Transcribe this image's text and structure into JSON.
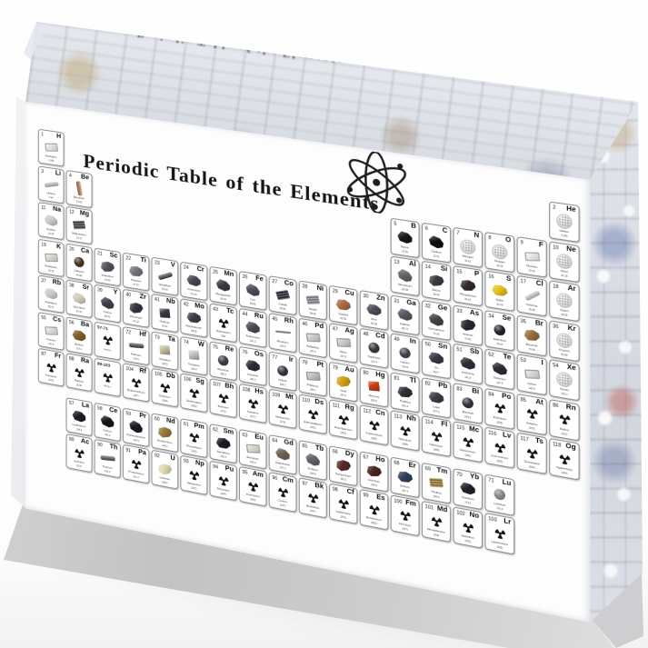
{
  "product": {
    "title": "Periodic Table of the Elements"
  },
  "icons": {
    "logo": "atom-icon",
    "unstable_sample": "radioactive-trefoil-icon"
  },
  "block_colors": {
    "front_face": "#fdfdfe",
    "base_edge_gray": "#c9c9ca",
    "side_refraction_blue": "#9aa8c8",
    "side_refraction_red": "#b94b3c",
    "side_refraction_tan": "#c8a070"
  },
  "placeholders": [
    {
      "label": "57-71",
      "sub": "La-Lu",
      "g": 3,
      "p": 6
    },
    {
      "label": "89-103",
      "sub": "Ac-Lr",
      "g": 3,
      "p": 7
    }
  ],
  "elements": [
    {
      "n": 1,
      "s": "H",
      "nm": "Hydrogen",
      "m": "1.008",
      "g": 1,
      "p": 1,
      "t": "s",
      "c": "#e8e8e6"
    },
    {
      "n": 2,
      "s": "He",
      "nm": "Helium",
      "m": "4.003",
      "g": 18,
      "p": 1,
      "t": "g"
    },
    {
      "n": 3,
      "s": "Li",
      "nm": "Lithium",
      "m": "6.94",
      "g": 1,
      "p": 2,
      "t": "r",
      "c": "#c0c0c4",
      "o": -15
    },
    {
      "n": 4,
      "s": "Be",
      "nm": "Beryllium",
      "m": "9.012",
      "g": 2,
      "p": 2,
      "t": "r",
      "c": "#b5713d",
      "o": 80
    },
    {
      "n": 5,
      "s": "B",
      "nm": "Boron",
      "m": "10.81",
      "g": 13,
      "p": 2,
      "t": "k",
      "c": "#17171b"
    },
    {
      "n": 6,
      "s": "C",
      "nm": "Carbon",
      "m": "12.01",
      "g": 14,
      "p": 2,
      "t": "k",
      "c": "#0f0f13"
    },
    {
      "n": 7,
      "s": "N",
      "nm": "Nitrogen",
      "m": "14.01",
      "g": 15,
      "p": 2,
      "t": "g"
    },
    {
      "n": 8,
      "s": "O",
      "nm": "Oxygen",
      "m": "16.00",
      "g": 16,
      "p": 2,
      "t": "g"
    },
    {
      "n": 9,
      "s": "F",
      "nm": "Fluorine",
      "m": "19.00",
      "g": 17,
      "p": 2,
      "t": "s",
      "c": "#eeeeec"
    },
    {
      "n": 10,
      "s": "Ne",
      "nm": "Neon",
      "m": "20.18",
      "g": 18,
      "p": 2,
      "t": "g"
    },
    {
      "n": 11,
      "s": "Na",
      "nm": "Sodium",
      "m": "22.99",
      "g": 1,
      "p": 3,
      "t": "k",
      "c": "#cbcbc7"
    },
    {
      "n": 12,
      "s": "Mg",
      "nm": "Magnesium",
      "m": "24.31",
      "g": 2,
      "p": 3,
      "t": "b",
      "c": "#4b4b51",
      "o": -10
    },
    {
      "n": 13,
      "s": "Al",
      "nm": "Aluminium",
      "m": "26.98",
      "g": 13,
      "p": 3,
      "t": "k",
      "c": "#63636b"
    },
    {
      "n": 14,
      "s": "Si",
      "nm": "Silicon",
      "m": "28.09",
      "g": 14,
      "p": 3,
      "t": "k",
      "c": "#3b3b43"
    },
    {
      "n": 15,
      "s": "P",
      "nm": "Phosphorus",
      "m": "30.97",
      "g": 15,
      "p": 3,
      "t": "k",
      "c": "#352a2c"
    },
    {
      "n": 16,
      "s": "S",
      "nm": "Sulfur",
      "m": "32.06",
      "g": 16,
      "p": 3,
      "t": "k",
      "c": "#e3c21d"
    },
    {
      "n": 17,
      "s": "Cl",
      "nm": "Chlorine",
      "m": "35.45",
      "g": 17,
      "p": 3,
      "t": "r",
      "c": "#caccc2",
      "o": -35
    },
    {
      "n": 18,
      "s": "Ar",
      "nm": "Argon",
      "m": "39.95",
      "g": 18,
      "p": 3,
      "t": "g"
    },
    {
      "n": 19,
      "s": "K",
      "nm": "Potassium",
      "m": "39.10",
      "g": 1,
      "p": 4,
      "t": "s",
      "c": "#d8d8d0"
    },
    {
      "n": 20,
      "s": "Ca",
      "nm": "Calcium",
      "m": "40.08",
      "g": 2,
      "p": 4,
      "t": "o",
      "c": "#483320"
    },
    {
      "n": 21,
      "s": "Sc",
      "nm": "Scandium",
      "m": "44.96",
      "g": 3,
      "p": 4,
      "t": "k",
      "c": "#53535b"
    },
    {
      "n": 22,
      "s": "Ti",
      "nm": "Titanium",
      "m": "47.87",
      "g": 4,
      "p": 4,
      "t": "k",
      "c": "#75757d"
    },
    {
      "n": 23,
      "s": "V",
      "nm": "Vanadium",
      "m": "50.94",
      "g": 5,
      "p": 4,
      "t": "r",
      "c": "#36363c",
      "o": -25
    },
    {
      "n": 24,
      "s": "Cr",
      "nm": "Chromium",
      "m": "52.00",
      "g": 6,
      "p": 4,
      "t": "k",
      "c": "#484851"
    },
    {
      "n": 25,
      "s": "Mn",
      "nm": "Manganese",
      "m": "54.94",
      "g": 7,
      "p": 4,
      "t": "k",
      "c": "#3b3b41"
    },
    {
      "n": 26,
      "s": "Fe",
      "nm": "Iron",
      "m": "55.85",
      "g": 8,
      "p": 4,
      "t": "k",
      "c": "#4d4d57"
    },
    {
      "n": 27,
      "s": "Co",
      "nm": "Cobalt",
      "m": "58.93",
      "g": 9,
      "p": 4,
      "t": "b",
      "c": "#31313b",
      "o": -18
    },
    {
      "n": 28,
      "s": "Ni",
      "nm": "Nickel",
      "m": "58.69",
      "g": 10,
      "p": 4,
      "t": "b",
      "c": "#909098",
      "o": -12
    },
    {
      "n": 29,
      "s": "Cu",
      "nm": "Copper",
      "m": "63.55",
      "g": 11,
      "p": 4,
      "t": "k",
      "c": "#ae6941"
    },
    {
      "n": 30,
      "s": "Zn",
      "nm": "Zinc",
      "m": "65.38",
      "g": 12,
      "p": 4,
      "t": "k",
      "c": "#4f4f59"
    },
    {
      "n": 31,
      "s": "Ga",
      "nm": "Gallium",
      "m": "69.72",
      "g": 13,
      "p": 4,
      "t": "k",
      "c": "#575761"
    },
    {
      "n": 32,
      "s": "Ge",
      "nm": "Germanium",
      "m": "72.63",
      "g": 14,
      "p": 4,
      "t": "k",
      "c": "#43434d"
    },
    {
      "n": 33,
      "s": "As",
      "nm": "Arsenic",
      "m": "74.92",
      "g": 15,
      "p": 4,
      "t": "k",
      "c": "#27272f"
    },
    {
      "n": 34,
      "s": "Se",
      "nm": "Selenium",
      "m": "78.97",
      "g": 16,
      "p": 4,
      "t": "o",
      "c": "#202028"
    },
    {
      "n": 35,
      "s": "Br",
      "nm": "Bromine",
      "m": "79.90",
      "g": 17,
      "p": 4,
      "t": "k",
      "c": "#966f3b"
    },
    {
      "n": 36,
      "s": "Kr",
      "nm": "Krypton",
      "m": "83.80",
      "g": 18,
      "p": 4,
      "t": "g"
    },
    {
      "n": 37,
      "s": "Rb",
      "nm": "Rubidium",
      "m": "85.47",
      "g": 1,
      "p": 5,
      "t": "k",
      "c": "#cdcdcd"
    },
    {
      "n": 38,
      "s": "Sr",
      "nm": "Strontium",
      "m": "87.62",
      "g": 2,
      "p": 5,
      "t": "k",
      "c": "#d3cebe"
    },
    {
      "n": 39,
      "s": "Y",
      "nm": "Yttrium",
      "m": "88.91",
      "g": 3,
      "p": 5,
      "t": "k",
      "c": "#404048"
    },
    {
      "n": 40,
      "s": "Zr",
      "nm": "Zirconium",
      "m": "91.22",
      "g": 4,
      "p": 5,
      "t": "k",
      "c": "#34343c"
    },
    {
      "n": 41,
      "s": "Nb",
      "nm": "Niobium",
      "m": "92.91",
      "g": 5,
      "p": 5,
      "t": "q",
      "c": "#3b3b45"
    },
    {
      "n": 42,
      "s": "Mo",
      "nm": "Molybdenum",
      "m": "95.95",
      "g": 6,
      "p": 5,
      "t": "k",
      "c": "#3d3d45"
    },
    {
      "n": 43,
      "s": "Tc",
      "nm": "Technetium",
      "m": "(98)",
      "g": 7,
      "p": 5,
      "t": "x"
    },
    {
      "n": 44,
      "s": "Ru",
      "nm": "Ruthenium",
      "m": "101.1",
      "g": 8,
      "p": 5,
      "t": "k",
      "c": "#4b4b53"
    },
    {
      "n": 45,
      "s": "Rh",
      "nm": "Rhodium",
      "m": "102.9",
      "g": 9,
      "p": 5,
      "t": "w",
      "c": "#7e7e86"
    },
    {
      "n": 46,
      "s": "Pd",
      "nm": "Palladium",
      "m": "106.4",
      "g": 10,
      "p": 5,
      "t": "s",
      "c": "#c7c7cb"
    },
    {
      "n": 47,
      "s": "Ag",
      "nm": "Silver",
      "m": "107.9",
      "g": 11,
      "p": 5,
      "t": "s",
      "c": "#c3c3c7"
    },
    {
      "n": 48,
      "s": "Cd",
      "nm": "Cadmium",
      "m": "112.4",
      "g": 12,
      "p": 5,
      "t": "o",
      "c": "#35353d"
    },
    {
      "n": 49,
      "s": "In",
      "nm": "Indium",
      "m": "114.8",
      "g": 13,
      "p": 5,
      "t": "o",
      "c": "#41414b"
    },
    {
      "n": 50,
      "s": "Sn",
      "nm": "Tin",
      "m": "118.7",
      "g": 14,
      "p": 5,
      "t": "k",
      "c": "#393943"
    },
    {
      "n": 51,
      "s": "Sb",
      "nm": "Antimony",
      "m": "121.8",
      "g": 15,
      "p": 5,
      "t": "k",
      "c": "#2e2e38"
    },
    {
      "n": 52,
      "s": "Te",
      "nm": "Tellurium",
      "m": "127.6",
      "g": 16,
      "p": 5,
      "t": "k",
      "c": "#2b2b33"
    },
    {
      "n": 53,
      "s": "I",
      "nm": "Iodine",
      "m": "126.9",
      "g": 17,
      "p": 5,
      "t": "s",
      "c": "#d6d6da"
    },
    {
      "n": 54,
      "s": "Xe",
      "nm": "Xenon",
      "m": "131.3",
      "g": 18,
      "p": 5,
      "t": "g"
    },
    {
      "n": 55,
      "s": "Cs",
      "nm": "Cesium",
      "m": "132.9",
      "g": 1,
      "p": 6,
      "t": "s",
      "c": "#dedede"
    },
    {
      "n": 56,
      "s": "Ba",
      "nm": "Barium",
      "m": "137.3",
      "g": 2,
      "p": 6,
      "t": "k",
      "c": "#7e6029"
    },
    {
      "n": 72,
      "s": "Hf",
      "nm": "Hafnium",
      "m": "178.5",
      "g": 4,
      "p": 6,
      "t": "r",
      "c": "#36363e",
      "o": -5
    },
    {
      "n": 73,
      "s": "Ta",
      "nm": "Tantalum",
      "m": "180.9",
      "g": 5,
      "p": 6,
      "t": "q",
      "c": "#c5bea3"
    },
    {
      "n": 74,
      "s": "W",
      "nm": "Tungsten",
      "m": "183.8",
      "g": 6,
      "p": 6,
      "t": "q",
      "c": "#c4c4c8"
    },
    {
      "n": 75,
      "s": "Re",
      "nm": "Rhenium",
      "m": "186.2",
      "g": 7,
      "p": 6,
      "t": "o",
      "c": "#3a3a42"
    },
    {
      "n": 76,
      "s": "Os",
      "nm": "Osmium",
      "m": "190.2",
      "g": 8,
      "p": 6,
      "t": "k",
      "c": "#2c2c34"
    },
    {
      "n": 77,
      "s": "Ir",
      "nm": "Iridium",
      "m": "192.2",
      "g": 9,
      "p": 6,
      "t": "o",
      "c": "#34343c"
    },
    {
      "n": 78,
      "s": "Pt",
      "nm": "Platinum",
      "m": "195.1",
      "g": 10,
      "p": 6,
      "t": "s",
      "c": "#b5b5bb"
    },
    {
      "n": 79,
      "s": "Au",
      "nm": "Gold",
      "m": "197.0",
      "g": 11,
      "p": 6,
      "t": "k",
      "c": "#d4a218"
    },
    {
      "n": 80,
      "s": "Hg",
      "nm": "Mercury",
      "m": "200.6",
      "g": 12,
      "p": 6,
      "t": "q",
      "c": "#c94117"
    },
    {
      "n": 81,
      "s": "Tl",
      "nm": "Thallium",
      "m": "204.4",
      "g": 13,
      "p": 6,
      "t": "k",
      "c": "#2f2f39"
    },
    {
      "n": 82,
      "s": "Pb",
      "nm": "Lead",
      "m": "207.2",
      "g": 14,
      "p": 6,
      "t": "k",
      "c": "#3c3c46"
    },
    {
      "n": 83,
      "s": "Bi",
      "nm": "Bismuth",
      "m": "209.0",
      "g": 15,
      "p": 6,
      "t": "o",
      "c": "#36303c"
    },
    {
      "n": 84,
      "s": "Po",
      "nm": "Polonium",
      "m": "(209)",
      "g": 16,
      "p": 6,
      "t": "x"
    },
    {
      "n": 85,
      "s": "At",
      "nm": "Astatine",
      "m": "(210)",
      "g": 17,
      "p": 6,
      "t": "x"
    },
    {
      "n": 86,
      "s": "Rn",
      "nm": "Radon",
      "m": "(222)",
      "g": 18,
      "p": 6,
      "t": "x"
    },
    {
      "n": 87,
      "s": "Fr",
      "nm": "Francium",
      "m": "(223)",
      "g": 1,
      "p": 7,
      "t": "x"
    },
    {
      "n": 88,
      "s": "Ra",
      "nm": "Radium",
      "m": "(226)",
      "g": 2,
      "p": 7,
      "t": "x"
    },
    {
      "n": 104,
      "s": "Rf",
      "nm": "Rutherfordium",
      "m": "(267)",
      "g": 4,
      "p": 7,
      "t": "x"
    },
    {
      "n": 105,
      "s": "Db",
      "nm": "Dubnium",
      "m": "(268)",
      "g": 5,
      "p": 7,
      "t": "x"
    },
    {
      "n": 106,
      "s": "Sg",
      "nm": "Seaborgium",
      "m": "(269)",
      "g": 6,
      "p": 7,
      "t": "x"
    },
    {
      "n": 107,
      "s": "Bh",
      "nm": "Bohrium",
      "m": "(270)",
      "g": 7,
      "p": 7,
      "t": "x"
    },
    {
      "n": 108,
      "s": "Hs",
      "nm": "Hassium",
      "m": "(277)",
      "g": 8,
      "p": 7,
      "t": "x"
    },
    {
      "n": 109,
      "s": "Mt",
      "nm": "Meitnerium",
      "m": "(278)",
      "g": 9,
      "p": 7,
      "t": "x"
    },
    {
      "n": 110,
      "s": "Ds",
      "nm": "Darmstadtium",
      "m": "(281)",
      "g": 10,
      "p": 7,
      "t": "x"
    },
    {
      "n": 111,
      "s": "Rg",
      "nm": "Roentgenium",
      "m": "(282)",
      "g": 11,
      "p": 7,
      "t": "x"
    },
    {
      "n": 112,
      "s": "Cn",
      "nm": "Copernicium",
      "m": "(285)",
      "g": 12,
      "p": 7,
      "t": "x"
    },
    {
      "n": 113,
      "s": "Nh",
      "nm": "Nihonium",
      "m": "(286)",
      "g": 13,
      "p": 7,
      "t": "x"
    },
    {
      "n": 114,
      "s": "Fl",
      "nm": "Flerovium",
      "m": "(289)",
      "g": 14,
      "p": 7,
      "t": "x"
    },
    {
      "n": 115,
      "s": "Mc",
      "nm": "Moscovium",
      "m": "(290)",
      "g": 15,
      "p": 7,
      "t": "x"
    },
    {
      "n": 116,
      "s": "Lv",
      "nm": "Livermorium",
      "m": "(293)",
      "g": 16,
      "p": 7,
      "t": "x"
    },
    {
      "n": 117,
      "s": "Ts",
      "nm": "Tennessine",
      "m": "(294)",
      "g": 17,
      "p": 7,
      "t": "x"
    },
    {
      "n": 118,
      "s": "Og",
      "nm": "Oganesson",
      "m": "(294)",
      "g": 18,
      "p": 7,
      "t": "x"
    },
    {
      "n": 57,
      "s": "La",
      "nm": "Lanthanum",
      "m": "138.9",
      "g": 2,
      "p": 8,
      "t": "k",
      "c": "#1d1d23"
    },
    {
      "n": 58,
      "s": "Ce",
      "nm": "Cerium",
      "m": "140.1",
      "g": 3,
      "p": 8,
      "t": "k",
      "c": "#15151b"
    },
    {
      "n": 59,
      "s": "Pr",
      "nm": "Praseodymium",
      "m": "140.9",
      "g": 4,
      "p": 8,
      "t": "k",
      "c": "#1b1b21"
    },
    {
      "n": 60,
      "s": "Nd",
      "nm": "Neodymium",
      "m": "144.2",
      "g": 5,
      "p": 8,
      "t": "k",
      "c": "#977739"
    },
    {
      "n": 61,
      "s": "Pm",
      "nm": "Promethium",
      "m": "(145)",
      "g": 6,
      "p": 8,
      "t": "x"
    },
    {
      "n": 62,
      "s": "Sm",
      "nm": "Samarium",
      "m": "150.4",
      "g": 7,
      "p": 8,
      "t": "k",
      "c": "#1c1c22"
    },
    {
      "n": 63,
      "s": "Eu",
      "nm": "Europium",
      "m": "152.0",
      "g": 8,
      "p": 8,
      "t": "s",
      "c": "#dad5c7"
    },
    {
      "n": 64,
      "s": "Gd",
      "nm": "Gadolinium",
      "m": "157.3",
      "g": 9,
      "p": 8,
      "t": "k",
      "c": "#706253"
    },
    {
      "n": 65,
      "s": "Tb",
      "nm": "Terbium",
      "m": "158.9",
      "g": 10,
      "p": 8,
      "t": "k",
      "c": "#61616b"
    },
    {
      "n": 66,
      "s": "Dy",
      "nm": "Dysprosium",
      "m": "162.5",
      "g": 11,
      "p": 8,
      "t": "k",
      "c": "#552c25"
    },
    {
      "n": 67,
      "s": "Ho",
      "nm": "Holmium",
      "m": "164.9",
      "g": 12,
      "p": 8,
      "t": "k",
      "c": "#49261f"
    },
    {
      "n": 68,
      "s": "Er",
      "nm": "Erbium",
      "m": "167.3",
      "g": 13,
      "p": 8,
      "t": "k",
      "c": "#303e59"
    },
    {
      "n": 69,
      "s": "Tm",
      "nm": "Thulium",
      "m": "168.9",
      "g": 14,
      "p": 8,
      "t": "b",
      "c": "#a3833b",
      "o": -8
    },
    {
      "n": 70,
      "s": "Yb",
      "nm": "Ytterbium",
      "m": "173.0",
      "g": 15,
      "p": 8,
      "t": "k",
      "c": "#21212b"
    },
    {
      "n": 71,
      "s": "Lu",
      "nm": "Lutetium",
      "m": "175.0",
      "g": 16,
      "p": 8,
      "t": "o",
      "c": "#85858d"
    },
    {
      "n": 89,
      "s": "Ac",
      "nm": "Actinium",
      "m": "(227)",
      "g": 2,
      "p": 9,
      "t": "x"
    },
    {
      "n": 90,
      "s": "Th",
      "nm": "Thorium",
      "m": "232.0",
      "g": 3,
      "p": 9,
      "t": "r",
      "c": "#44444c",
      "o": -5
    },
    {
      "n": 91,
      "s": "Pa",
      "nm": "Protactinium",
      "m": "231.0",
      "g": 4,
      "p": 9,
      "t": "x"
    },
    {
      "n": 92,
      "s": "U",
      "nm": "Uranium",
      "m": "238.0",
      "g": 5,
      "p": 9,
      "t": "k",
      "c": "#e1dab3"
    },
    {
      "n": 93,
      "s": "Np",
      "nm": "Neptunium",
      "m": "(237)",
      "g": 6,
      "p": 9,
      "t": "x"
    },
    {
      "n": 94,
      "s": "Pu",
      "nm": "Plutonium",
      "m": "(244)",
      "g": 7,
      "p": 9,
      "t": "x"
    },
    {
      "n": 95,
      "s": "Am",
      "nm": "Americium",
      "m": "(243)",
      "g": 8,
      "p": 9,
      "t": "x"
    },
    {
      "n": 96,
      "s": "Cm",
      "nm": "Curium",
      "m": "(247)",
      "g": 9,
      "p": 9,
      "t": "x"
    },
    {
      "n": 97,
      "s": "Bk",
      "nm": "Berkelium",
      "m": "(247)",
      "g": 10,
      "p": 9,
      "t": "x"
    },
    {
      "n": 98,
      "s": "Cf",
      "nm": "Californium",
      "m": "(251)",
      "g": 11,
      "p": 9,
      "t": "x"
    },
    {
      "n": 99,
      "s": "Es",
      "nm": "Einsteinium",
      "m": "(252)",
      "g": 12,
      "p": 9,
      "t": "x"
    },
    {
      "n": 100,
      "s": "Fm",
      "nm": "Fermium",
      "m": "(257)",
      "g": 13,
      "p": 9,
      "t": "x"
    },
    {
      "n": 101,
      "s": "Md",
      "nm": "Mendelevium",
      "m": "(258)",
      "g": 14,
      "p": 9,
      "t": "x"
    },
    {
      "n": 102,
      "s": "No",
      "nm": "Nobelium",
      "m": "(259)",
      "g": 15,
      "p": 9,
      "t": "x"
    },
    {
      "n": 103,
      "s": "Lr",
      "nm": "Lawrencium",
      "m": "(266)",
      "g": 16,
      "p": 9,
      "t": "x"
    }
  ]
}
